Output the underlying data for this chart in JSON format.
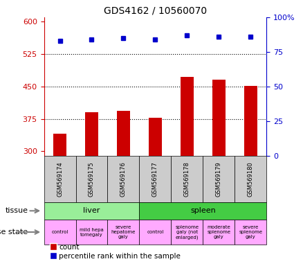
{
  "title": "GDS4162 / 10560070",
  "samples": [
    "GSM569174",
    "GSM569175",
    "GSM569176",
    "GSM569177",
    "GSM569178",
    "GSM569179",
    "GSM569180"
  ],
  "count_values": [
    340,
    390,
    393,
    378,
    472,
    466,
    452
  ],
  "percentile_values": [
    83,
    84,
    85,
    84,
    87,
    86,
    86
  ],
  "ylim_left": [
    290,
    610
  ],
  "ylim_right": [
    0,
    100
  ],
  "yticks_left": [
    300,
    375,
    450,
    525,
    600
  ],
  "yticks_right": [
    0,
    25,
    50,
    75,
    100
  ],
  "ytick_right_labels": [
    "0",
    "25",
    "50",
    "75",
    "100%"
  ],
  "bar_color": "#cc0000",
  "dot_color": "#0000cc",
  "left_axis_color": "#cc0000",
  "right_axis_color": "#0000cc",
  "tissue_liver_color": "#99ee99",
  "tissue_spleen_color": "#44cc44",
  "disease_color": "#ffaaff",
  "sample_bg_color": "#cccccc",
  "tissue_row": [
    {
      "label": "liver",
      "start": 0,
      "end": 3
    },
    {
      "label": "spleen",
      "start": 3,
      "end": 7
    }
  ],
  "disease_row": [
    {
      "label": "control",
      "start": 0,
      "end": 1
    },
    {
      "label": "mild hepa\ntomegaly",
      "start": 1,
      "end": 2
    },
    {
      "label": "severe\nhepatome\ngaly",
      "start": 2,
      "end": 3
    },
    {
      "label": "control",
      "start": 3,
      "end": 4
    },
    {
      "label": "splenome\ngaly (not\nenlarged)",
      "start": 4,
      "end": 5
    },
    {
      "label": "moderate\nsplenome\ngaly",
      "start": 5,
      "end": 6
    },
    {
      "label": "severe\nsplenome\ngaly",
      "start": 6,
      "end": 7
    }
  ],
  "legend_count_label": "count",
  "legend_pct_label": "percentile rank within the sample"
}
